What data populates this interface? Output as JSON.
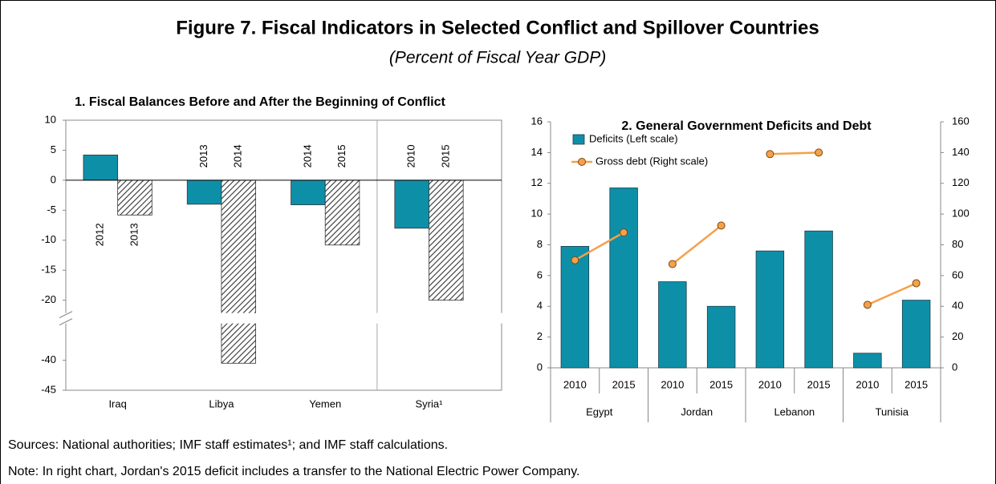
{
  "title": "Figure 7. Fiscal Indicators in Selected Conflict and Spillover Countries",
  "subtitle": "(Percent of Fiscal Year GDP)",
  "chart_data": [
    {
      "type": "bar",
      "title": "1. Fiscal Balances Before and After the Beginning of Conflict",
      "categories": [
        "Iraq",
        "Libya",
        "Yemen",
        "Syria¹"
      ],
      "series": [
        {
          "color": "#0e8fa8",
          "values": [
            4.2,
            -4,
            -4.1,
            -8
          ],
          "labels": [
            "2012",
            "2013",
            "2014",
            "2010"
          ]
        },
        {
          "color": "#333333",
          "pattern": "hatch",
          "values": [
            -5.8,
            -40.5,
            -10.8,
            -20
          ],
          "labels": [
            "2013",
            "2014",
            "2015",
            "2015"
          ]
        }
      ],
      "ylim": [
        -45,
        10
      ],
      "ybreak": [
        -22,
        -34
      ],
      "yticks": [
        10,
        5,
        0,
        -5,
        -10,
        -15,
        -20,
        -40,
        -45
      ]
    },
    {
      "type": "combo",
      "title": "2. General Government Deficits and Debt",
      "categories": [
        "2010",
        "2015",
        "2010",
        "2015",
        "2010",
        "2015",
        "2010",
        "2015"
      ],
      "groups": [
        "Egypt",
        "Jordan",
        "Lebanon",
        "Tunisia"
      ],
      "series": [
        {
          "name": "Deficits (Left scale)",
          "type": "bar",
          "color": "#0e8fa8",
          "values": [
            7.9,
            11.7,
            5.6,
            4.0,
            7.6,
            8.9,
            0.95,
            4.4
          ]
        },
        {
          "name": "Gross debt (Right scale)",
          "type": "line",
          "axis": "y2",
          "color": "#f5a04a",
          "values": [
            70,
            88,
            67.5,
            92.5,
            139,
            140,
            41,
            55
          ]
        }
      ],
      "ylim": [
        0,
        16
      ],
      "yticks": [
        0,
        2,
        4,
        6,
        8,
        10,
        12,
        14,
        16
      ],
      "y2lim": [
        0,
        160
      ],
      "y2ticks": [
        0,
        20,
        40,
        60,
        80,
        100,
        120,
        140,
        160
      ],
      "legend": "upper left"
    }
  ],
  "sources": "Sources: National authorities; IMF staff estimates¹; and IMF staff calculations.",
  "note": "Note: In right chart, Jordan's 2015 deficit includes a transfer to the National Electric Power Company."
}
